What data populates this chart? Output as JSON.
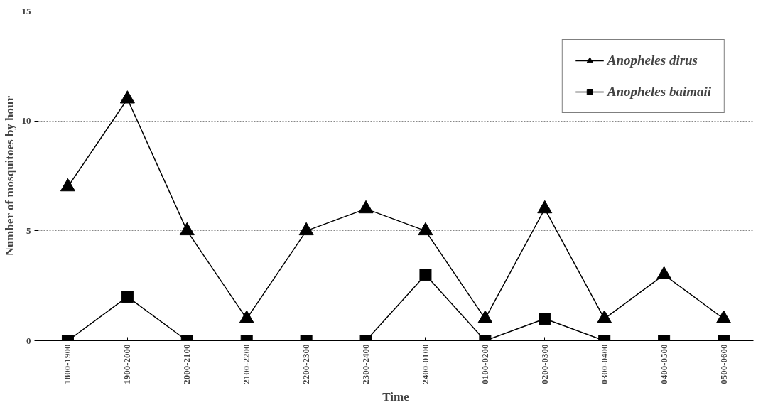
{
  "chart_data": {
    "type": "line",
    "xlabel": "Time",
    "ylabel": "Number of mosquitoes by hour",
    "categories": [
      "1800-1900",
      "1900-2000",
      "2000-2100",
      "2100-2200",
      "2200-2300",
      "2300-2400",
      "2400-0100",
      "0100-0200",
      "0200-0300",
      "0300-0400",
      "0400-0500",
      "0500-0600"
    ],
    "series": [
      {
        "name": "Anopheles dirus",
        "color": "#000000",
        "marker": "triangle",
        "values": [
          7,
          11,
          5,
          1,
          5,
          6,
          5,
          1,
          6,
          1,
          3,
          1
        ]
      },
      {
        "name": "Anopheles baimaii",
        "color": "#000000",
        "marker": "square",
        "values": [
          0,
          2,
          0,
          0,
          0,
          0,
          3,
          0,
          1,
          0,
          0,
          0
        ]
      }
    ],
    "ylim": [
      0,
      15
    ],
    "yticks": [
      0,
      5,
      10,
      15
    ],
    "grid": "y",
    "legend": "top right",
    "line_style": "solid"
  }
}
